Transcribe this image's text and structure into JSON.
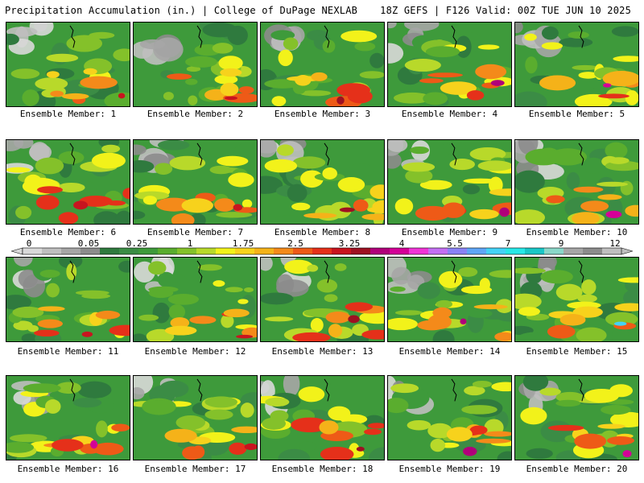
{
  "header": {
    "title_left": "Precipitation Accumulation (in.) | College of DuPage NEXLAB",
    "title_right": "18Z GEFS | F126 Valid: 00Z TUE JUN 10 2025"
  },
  "colors": {
    "levels": [
      "#d9d9d9",
      "#bfbfbf",
      "#a6a6a6",
      "#8c8c8c",
      "#2f7a3e",
      "#3b8c45",
      "#3e9a3b",
      "#5aad2e",
      "#84c12a",
      "#b8d92a",
      "#f2f21a",
      "#f7d21c",
      "#f5b219",
      "#f48a1a",
      "#ee5a17",
      "#e5301a",
      "#c8141f",
      "#9e1022",
      "#b0007a",
      "#d40097",
      "#ef34d6",
      "#c36ff2",
      "#8a82f5",
      "#5fa6f6",
      "#44d2f6",
      "#27e8e8",
      "#19c7c7",
      "#8ad7c9",
      "#a6a6a6",
      "#8c8c8c",
      "#bfbfbf"
    ],
    "map_outline": "#000000"
  },
  "colorbar": {
    "tick_labels": [
      "0",
      "0.05",
      "0.25",
      "1",
      "1.75",
      "2.5",
      "3.25",
      "4",
      "5.5",
      "7",
      "9",
      "12"
    ]
  },
  "panels": [
    {
      "caption": "Ensemble Member: 1",
      "icon": "precip-map-1"
    },
    {
      "caption": "Ensemble Member: 2",
      "icon": "precip-map-2"
    },
    {
      "caption": "Ensemble Member: 3",
      "icon": "precip-map-3"
    },
    {
      "caption": "Ensemble Member: 4",
      "icon": "precip-map-4"
    },
    {
      "caption": "Ensemble Member: 5",
      "icon": "precip-map-5"
    },
    {
      "caption": "Ensemble Member: 6",
      "icon": "precip-map-6"
    },
    {
      "caption": "Ensemble Member: 7",
      "icon": "precip-map-7"
    },
    {
      "caption": "Ensemble Member: 8",
      "icon": "precip-map-8"
    },
    {
      "caption": "Ensemble Member: 9",
      "icon": "precip-map-9"
    },
    {
      "caption": "Ensemble Member: 10",
      "icon": "precip-map-10"
    },
    {
      "caption": "Ensemble Member: 11",
      "icon": "precip-map-11"
    },
    {
      "caption": "Ensemble Member: 12",
      "icon": "precip-map-12"
    },
    {
      "caption": "Ensemble Member: 13",
      "icon": "precip-map-13"
    },
    {
      "caption": "Ensemble Member: 14",
      "icon": "precip-map-14"
    },
    {
      "caption": "Ensemble Member: 15",
      "icon": "precip-map-15"
    },
    {
      "caption": "Ensemble Member: 16",
      "icon": "precip-map-16"
    },
    {
      "caption": "Ensemble Member: 17",
      "icon": "precip-map-17"
    },
    {
      "caption": "Ensemble Member: 18",
      "icon": "precip-map-18"
    },
    {
      "caption": "Ensemble Member: 19",
      "icon": "precip-map-19"
    },
    {
      "caption": "Ensemble Member: 20",
      "icon": "precip-map-20"
    }
  ]
}
